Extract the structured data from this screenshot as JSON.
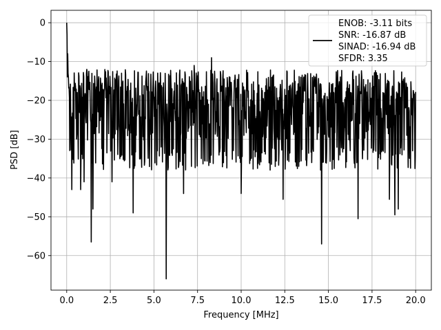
{
  "chart_data": {
    "type": "line",
    "xlabel": "Frequency [MHz]",
    "ylabel": "PSD [dB]",
    "xlim": [
      -0.9,
      20.9
    ],
    "ylim": [
      -68.9,
      3.2
    ],
    "xticks": [
      0.0,
      2.5,
      5.0,
      7.5,
      10.0,
      12.5,
      15.0,
      17.5,
      20.0
    ],
    "xtick_labels": [
      "0.0",
      "2.5",
      "5.0",
      "7.5",
      "10.0",
      "12.5",
      "15.0",
      "17.5",
      "20.0"
    ],
    "yticks": [
      0,
      -10,
      -20,
      -30,
      -40,
      -50,
      -60
    ],
    "ytick_labels": [
      "0",
      "−10",
      "−20",
      "−30",
      "−40",
      "−50",
      "−60"
    ],
    "grid": true,
    "legend_position": "top-right",
    "line_color": "#000000",
    "series": [
      {
        "name": "ENOB: -3.11 bits\nSNR: -16.87 dB\nSINAD: -16.94 dB\nSFDR: 3.35",
        "x_range": [
          0,
          20
        ],
        "n_points": 1025,
        "noise_floor_db": -24,
        "upper_envelope_db": -15,
        "lower_envelope_db": -35,
        "features": [
          {
            "x": 0.0,
            "y": 0.0
          },
          {
            "x": 0.02,
            "y": -3.0
          },
          {
            "x": 0.06,
            "y": -8.0
          },
          {
            "x": 0.1,
            "y": -14.0
          },
          {
            "x": 0.3,
            "y": -43.0
          },
          {
            "x": 0.8,
            "y": -43.0
          },
          {
            "x": 1.0,
            "y": -41.0
          },
          {
            "x": 1.4,
            "y": -56.5
          },
          {
            "x": 1.5,
            "y": -48.0
          },
          {
            "x": 2.6,
            "y": -41.0
          },
          {
            "x": 3.8,
            "y": -49.0
          },
          {
            "x": 5.7,
            "y": -66.0
          },
          {
            "x": 6.7,
            "y": -44.0
          },
          {
            "x": 7.3,
            "y": -11.0
          },
          {
            "x": 8.3,
            "y": -9.0
          },
          {
            "x": 10.0,
            "y": -44.0
          },
          {
            "x": 12.4,
            "y": -45.5
          },
          {
            "x": 14.6,
            "y": -57.0
          },
          {
            "x": 16.7,
            "y": -50.5
          },
          {
            "x": 18.5,
            "y": -45.5
          },
          {
            "x": 18.8,
            "y": -49.5
          },
          {
            "x": 19.0,
            "y": -48.0
          }
        ]
      }
    ],
    "legend_lines": [
      "ENOB: -3.11 bits",
      "SNR: -16.87 dB",
      "SINAD: -16.94 dB",
      "SFDR: 3.35"
    ]
  }
}
